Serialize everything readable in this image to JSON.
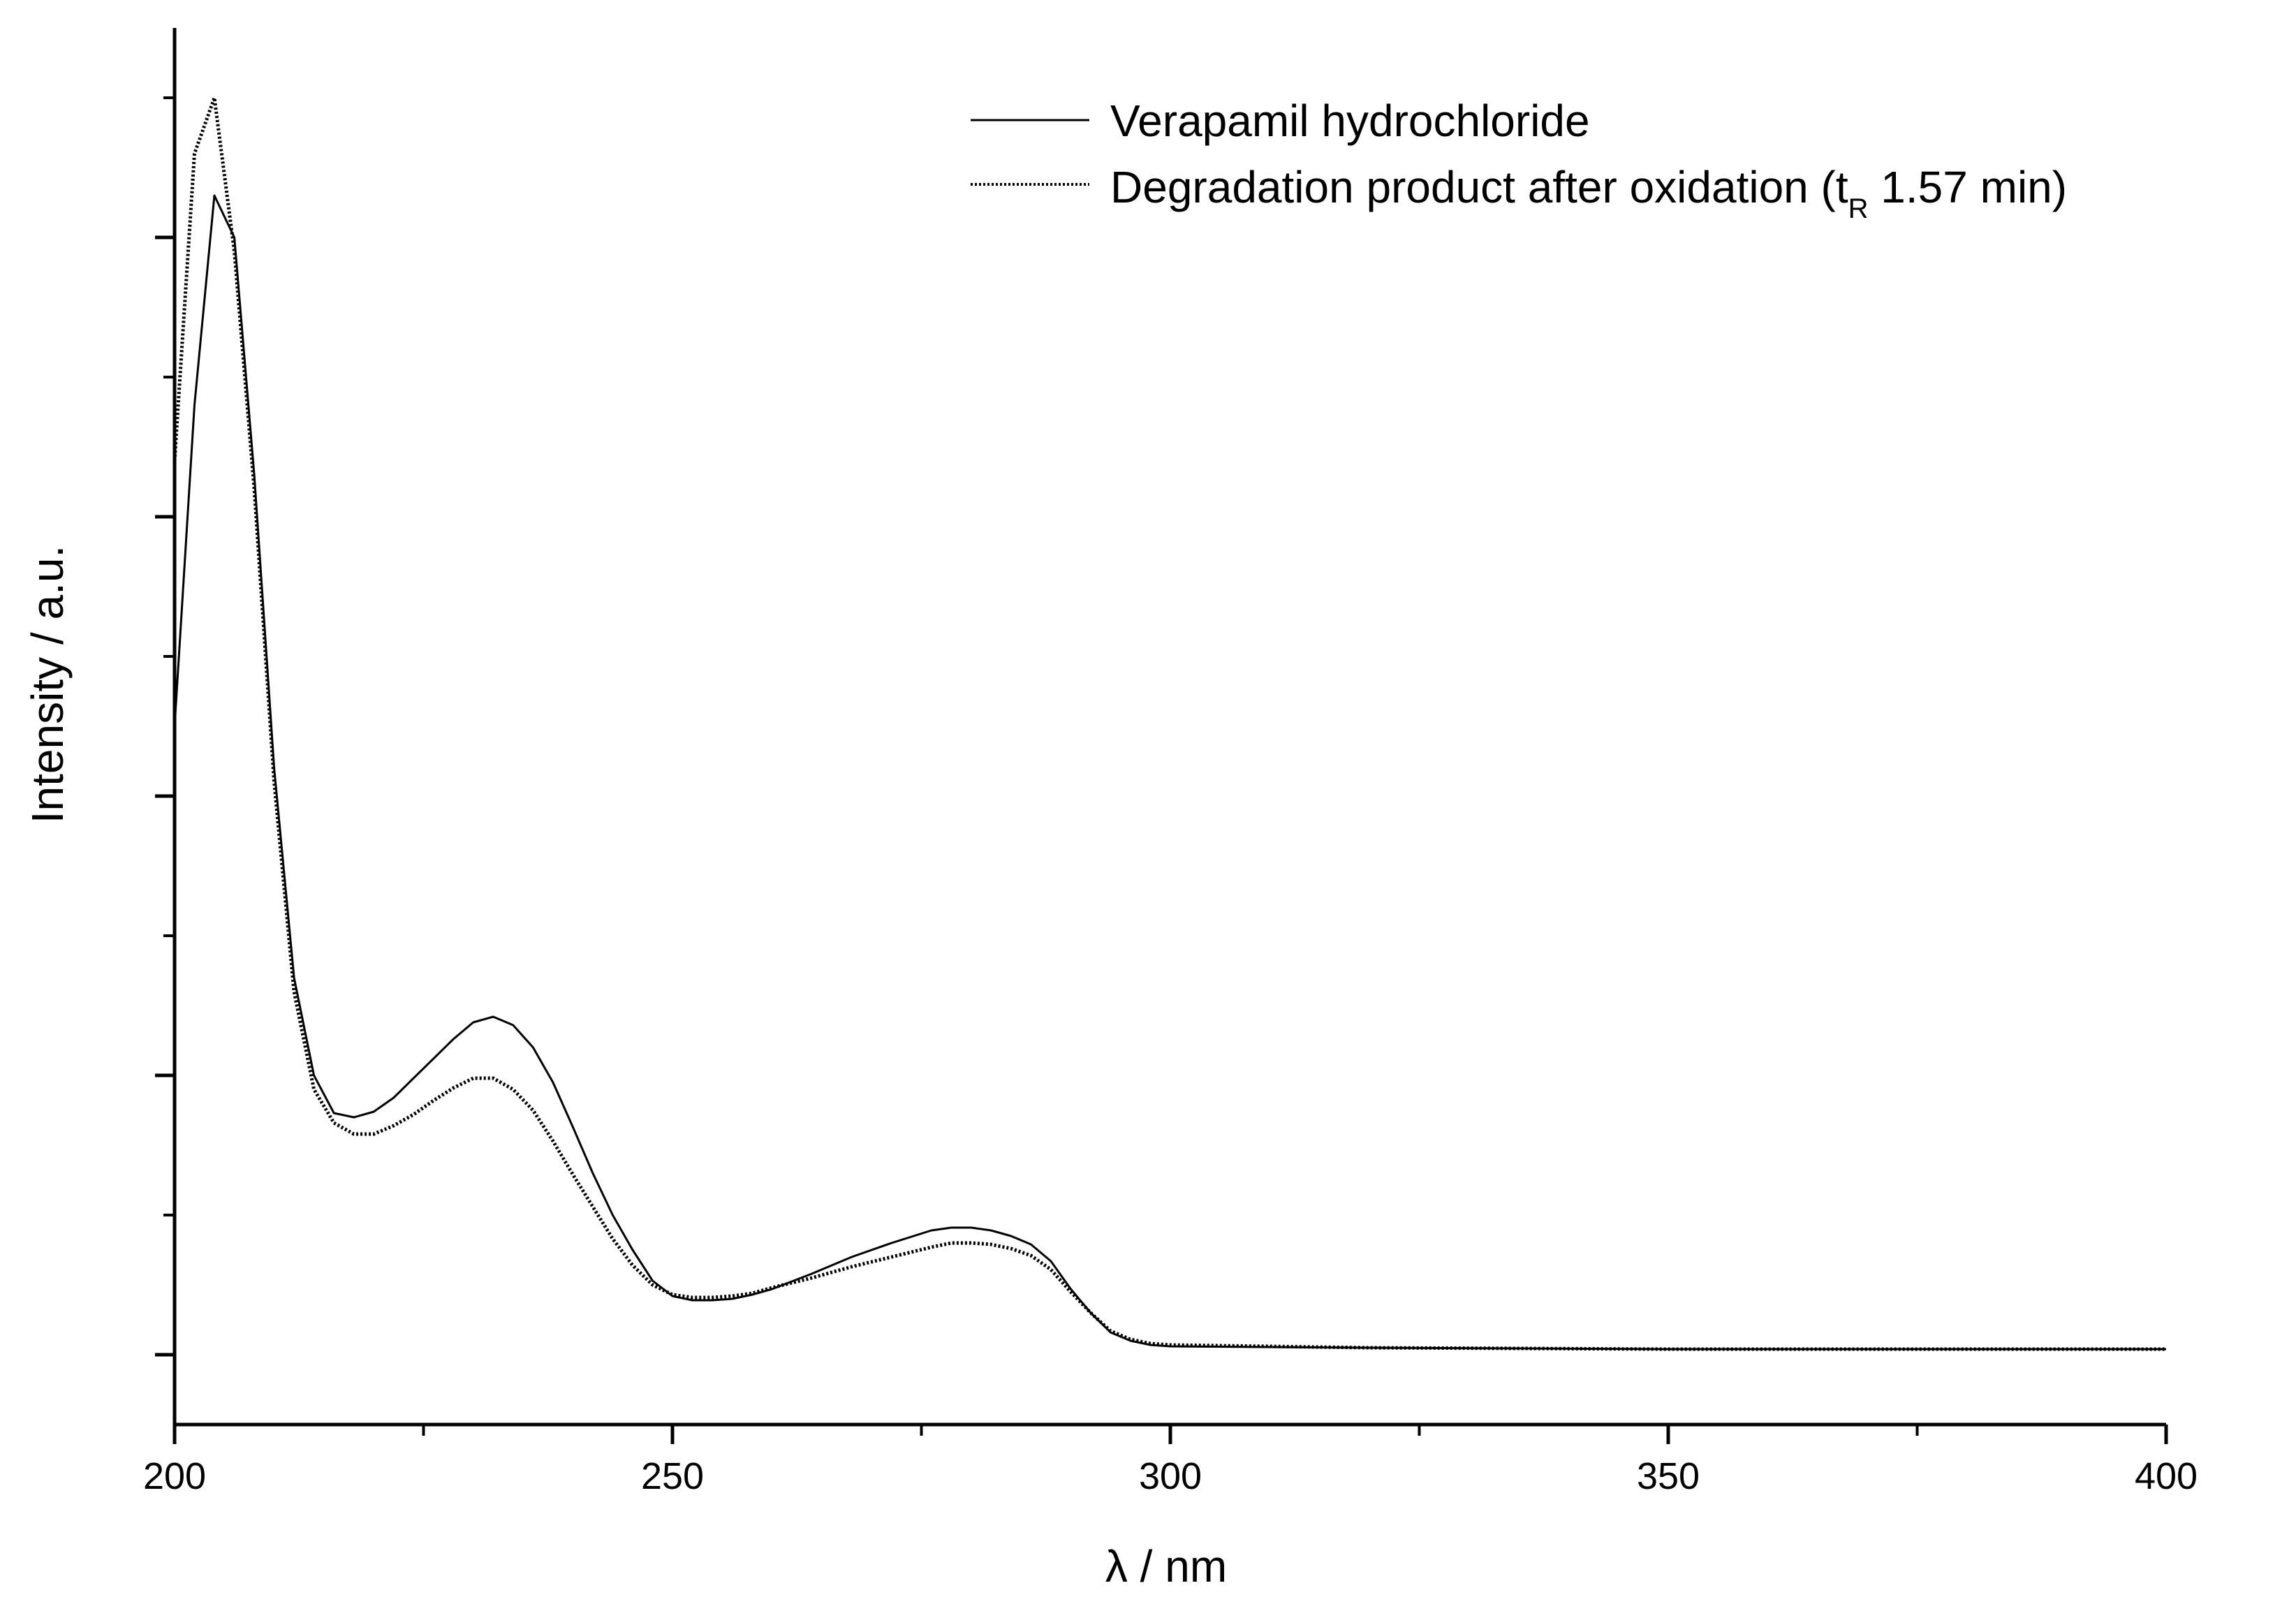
{
  "chart_data": {
    "type": "line",
    "xlabel": "λ / nm",
    "ylabel": "Intensity / a.u.",
    "xlim": [
      200,
      400
    ],
    "ylim": [
      -0.05,
      0.95
    ],
    "x_ticks": [
      "200",
      "250",
      "300",
      "350",
      "400"
    ],
    "y_tick_labels": "none",
    "grid": false,
    "legend": {
      "position": "top-right",
      "entries": [
        {
          "text": "Verapamil hydrochloride"
        },
        {
          "text_before": "Degradation product after oxidation (t",
          "subscript": "R",
          "text_after": " 1.57 min)"
        }
      ]
    },
    "series": [
      {
        "name": "Verapamil hydrochloride",
        "style": "solid",
        "color": "#000000",
        "x": [
          200,
          202,
          204,
          206,
          208,
          210,
          212,
          214,
          216,
          218,
          220,
          222,
          224,
          226,
          228,
          230,
          232,
          234,
          236,
          238,
          240,
          242,
          244,
          246,
          248,
          250,
          252,
          254,
          256,
          258,
          260,
          264,
          268,
          272,
          276,
          278,
          280,
          282,
          284,
          286,
          288,
          290,
          292,
          294,
          296,
          298,
          300,
          320,
          350,
          380,
          400
        ],
        "y": [
          0.45,
          0.68,
          0.83,
          0.8,
          0.63,
          0.42,
          0.27,
          0.2,
          0.173,
          0.17,
          0.174,
          0.184,
          0.198,
          0.212,
          0.226,
          0.238,
          0.242,
          0.236,
          0.22,
          0.195,
          0.163,
          0.13,
          0.1,
          0.075,
          0.053,
          0.042,
          0.039,
          0.039,
          0.04,
          0.043,
          0.047,
          0.058,
          0.07,
          0.08,
          0.089,
          0.091,
          0.091,
          0.089,
          0.085,
          0.079,
          0.067,
          0.047,
          0.03,
          0.016,
          0.01,
          0.007,
          0.006,
          0.005,
          0.004,
          0.004,
          0.004
        ]
      },
      {
        "name": "Degradation product after oxidation (tR 1.57 min)",
        "style": "dotted",
        "color": "#000000",
        "x": [
          200,
          202,
          204,
          206,
          208,
          210,
          212,
          214,
          216,
          218,
          220,
          222,
          224,
          226,
          228,
          230,
          232,
          234,
          236,
          238,
          240,
          242,
          244,
          246,
          248,
          250,
          252,
          254,
          256,
          258,
          260,
          264,
          268,
          272,
          276,
          278,
          280,
          282,
          284,
          286,
          288,
          290,
          292,
          294,
          296,
          298,
          300,
          320,
          350,
          380,
          400
        ],
        "y": [
          0.64,
          0.86,
          0.9,
          0.79,
          0.62,
          0.41,
          0.26,
          0.19,
          0.166,
          0.158,
          0.158,
          0.164,
          0.172,
          0.182,
          0.191,
          0.198,
          0.198,
          0.19,
          0.175,
          0.153,
          0.129,
          0.106,
          0.083,
          0.064,
          0.05,
          0.043,
          0.041,
          0.041,
          0.042,
          0.044,
          0.048,
          0.055,
          0.063,
          0.07,
          0.077,
          0.08,
          0.08,
          0.079,
          0.076,
          0.071,
          0.061,
          0.045,
          0.03,
          0.017,
          0.011,
          0.008,
          0.007,
          0.005,
          0.004,
          0.004,
          0.004
        ]
      }
    ]
  }
}
